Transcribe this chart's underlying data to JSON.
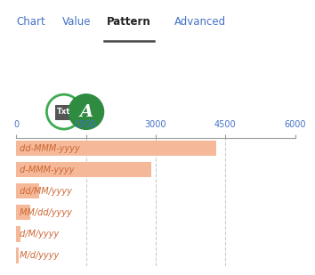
{
  "tabs": [
    "Chart",
    "Value",
    "Pattern",
    "Advanced"
  ],
  "active_tab": "Pattern",
  "tab_underline_color": "#444444",
  "tab_active_color": "#222222",
  "tab_inactive_color": "#4472C4",
  "categories": [
    "dd-MMM-yyyy",
    "d-MMM-yyyy",
    "dd/MM/yyyy",
    "MM/dd/yyyy",
    "d/M/yyyy",
    "M/d/yyyy"
  ],
  "values": [
    4300,
    2900,
    500,
    300,
    100,
    60
  ],
  "bar_color": "#F5B999",
  "label_color": "#CC6633",
  "xlim": [
    0,
    6000
  ],
  "xticks": [
    0,
    1500,
    3000,
    4500,
    6000
  ],
  "xtick_color": "#4472C4",
  "grid_color": "#CCCCCC",
  "axis_line_color": "#999999",
  "background_color": "#FFFFFF",
  "icon1_border_color": "#3DAA50",
  "icon1_bg_color": "#FFFFFF",
  "icon1_text": "Txt",
  "icon1_text_color": "#333333",
  "icon1_box_color": "#666666",
  "icon2_bg_color": "#2E8B40",
  "icon2_text": "A",
  "icon2_text_color": "#FFFFFF",
  "tab_fontsize": 8.5,
  "label_fontsize": 7,
  "tick_fontsize": 7
}
